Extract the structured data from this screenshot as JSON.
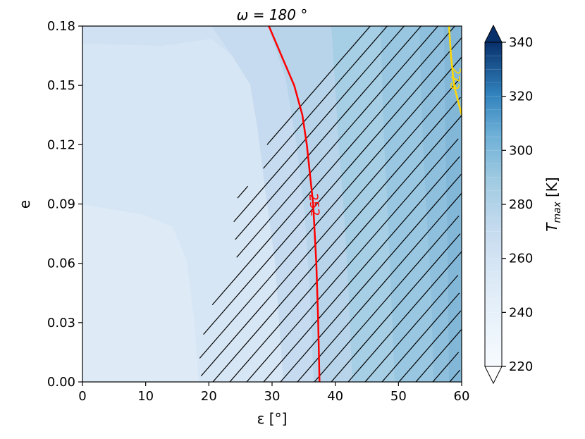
{
  "chart_data": {
    "type": "heatmap",
    "title": "ω = 180 °",
    "xlabel": "ε [°]",
    "ylabel": "e",
    "xlim": [
      0,
      60
    ],
    "ylim": [
      0,
      0.18
    ],
    "x_ticks": [
      "0",
      "10",
      "20",
      "30",
      "40",
      "50",
      "60"
    ],
    "y_ticks": [
      "0.00",
      "0.03",
      "0.06",
      "0.09",
      "0.12",
      "0.15",
      "0.18"
    ],
    "colorbar": {
      "label": "T_max [K]",
      "label_base": "T",
      "label_sub": "max",
      "label_unit": "[K]",
      "range": [
        220,
        340
      ],
      "ticks": [
        "220",
        "240",
        "260",
        "280",
        "300",
        "320",
        "340"
      ],
      "colormap": "Blues",
      "extend": "both"
    },
    "contours": [
      {
        "label": "252",
        "color": "#ff0000",
        "points": [
          [
            37.5,
            0.0
          ],
          [
            37.3,
            0.03
          ],
          [
            37.0,
            0.06
          ],
          [
            36.5,
            0.09
          ],
          [
            35.5,
            0.12
          ],
          [
            34.8,
            0.135
          ],
          [
            33.5,
            0.15
          ],
          [
            31.5,
            0.165
          ],
          [
            29.5,
            0.18
          ]
        ]
      },
      {
        "label": "273",
        "color": "#ffd700",
        "points": [
          [
            58.0,
            0.18
          ],
          [
            58.3,
            0.165
          ],
          [
            58.8,
            0.15
          ],
          [
            59.6,
            0.14
          ],
          [
            60.0,
            0.135
          ]
        ]
      }
    ],
    "hatched_region": {
      "pattern": "diagonal lines",
      "color": "#000000"
    },
    "filled_levels": [
      {
        "level": "225-230",
        "color": "#deebf7"
      },
      {
        "level": "230-235",
        "color": "#d7e6f4"
      },
      {
        "level": "235-240",
        "color": "#cfe1f2"
      },
      {
        "level": "240-245",
        "color": "#c6dbef"
      },
      {
        "level": "245-250",
        "color": "#b7d4ea"
      },
      {
        "level": "250-255",
        "color": "#a6cee4"
      },
      {
        "level": "255-260",
        "color": "#94c4df"
      },
      {
        "level": "260-265",
        "color": "#83bbdb"
      }
    ]
  }
}
